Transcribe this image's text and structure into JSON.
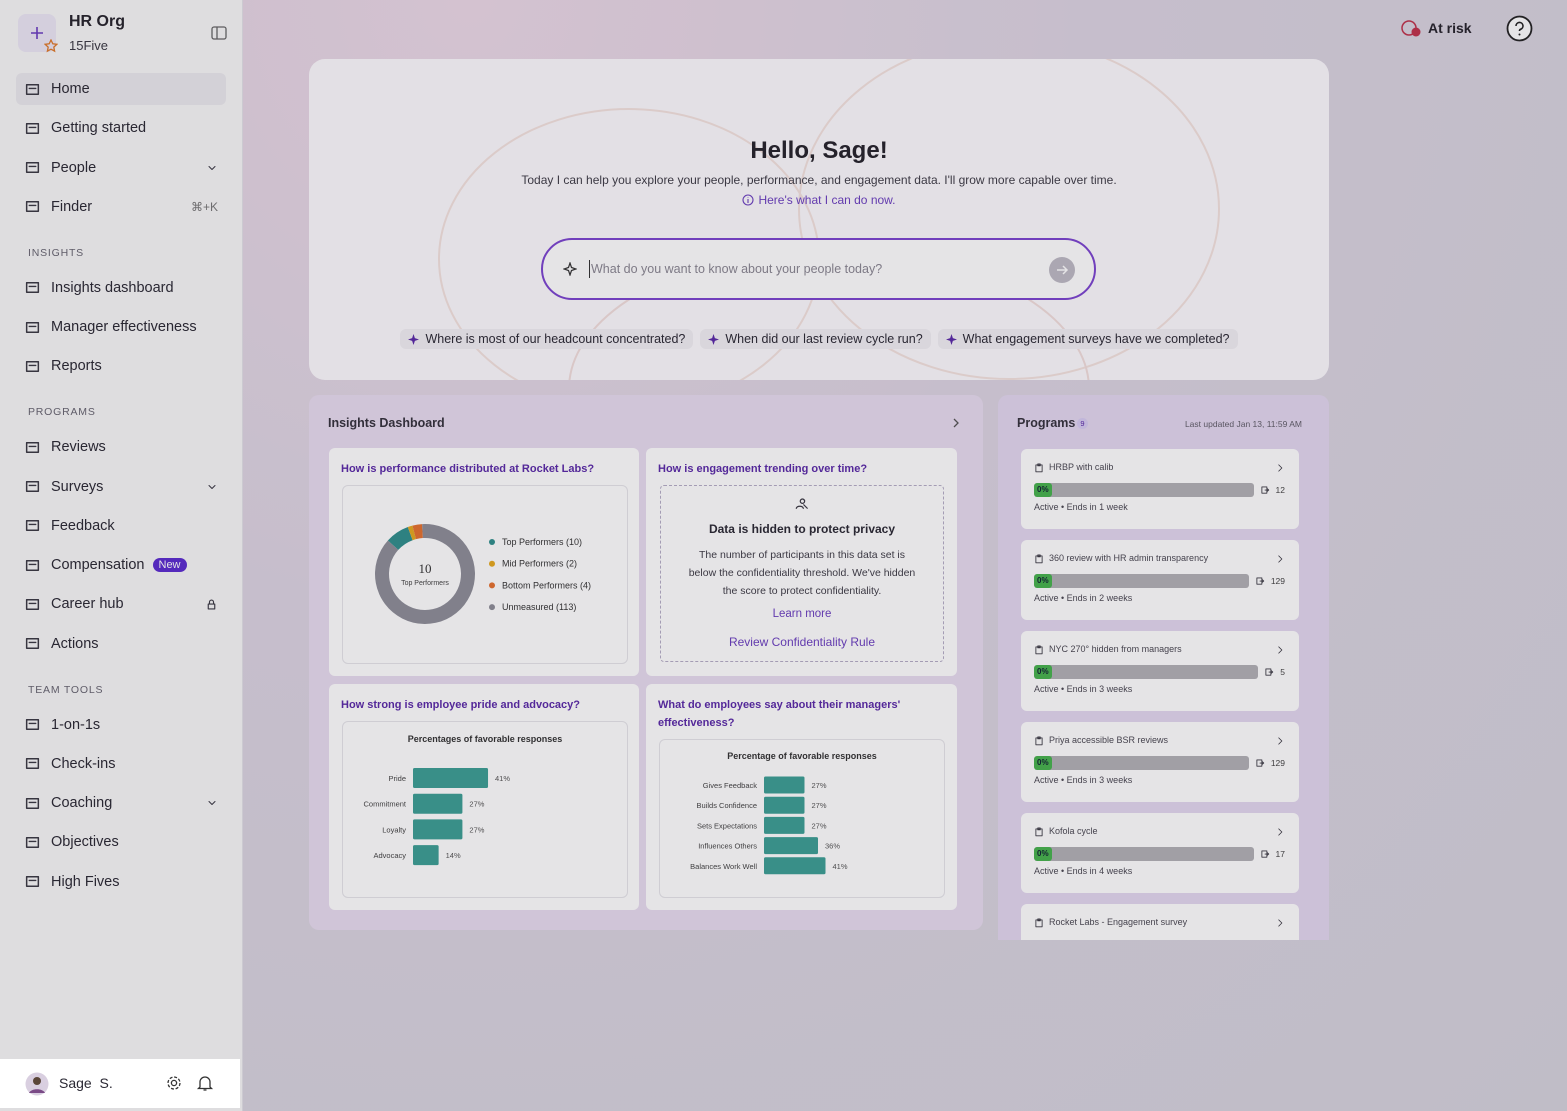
{
  "sidebar": {
    "org": {
      "name": "HR Org",
      "subtitle": "15Five"
    },
    "nav": [
      {
        "label": "Home",
        "active": true
      },
      {
        "label": "Getting started"
      },
      {
        "label": "People",
        "expandable": true
      },
      {
        "label": "Finder",
        "shortcut": "⌘+K"
      }
    ],
    "sections": [
      {
        "title": "INSIGHTS",
        "items": [
          {
            "label": "Insights dashboard"
          },
          {
            "label": "Manager effectiveness"
          },
          {
            "label": "Reports"
          }
        ]
      },
      {
        "title": "PROGRAMS",
        "items": [
          {
            "label": "Reviews"
          },
          {
            "label": "Surveys",
            "expandable": true
          },
          {
            "label": "Feedback"
          },
          {
            "label": "Compensation",
            "badge": "New"
          },
          {
            "label": "Career hub",
            "locked": true
          },
          {
            "label": "Actions"
          }
        ]
      },
      {
        "title": "TEAM TOOLS",
        "items": [
          {
            "label": "1-on-1s"
          },
          {
            "label": "Check-ins"
          },
          {
            "label": "Coaching",
            "expandable": true
          },
          {
            "label": "Objectives"
          },
          {
            "label": "High Fives"
          }
        ]
      }
    ],
    "user": {
      "name": "Sage  S."
    }
  },
  "header": {
    "status": "At risk"
  },
  "hero": {
    "title": "Hello, Sage!",
    "subtitle": "Today I can help you explore your people, performance, and engagement data. I'll grow more capable over time.",
    "link": "Here's what I can do now.",
    "placeholder": "What do you want to know about your people today?",
    "suggestions": [
      "Where is most of our headcount concentrated?",
      "When did our last review cycle run?",
      "What engagement surveys have we completed?"
    ]
  },
  "insights": {
    "title": "Insights Dashboard",
    "performance": {
      "question": "How is performance distributed at Rocket Labs?",
      "center_value": 10,
      "center_label": "Top Performers",
      "segments": [
        {
          "label": "Top Performers (10)",
          "value": 10,
          "color": "#2f8f8c"
        },
        {
          "label": "Mid Performers (2)",
          "value": 2,
          "color": "#e6a91e"
        },
        {
          "label": "Bottom Performers (4)",
          "value": 4,
          "color": "#e5712e"
        },
        {
          "label": "Unmeasured (113)",
          "value": 113,
          "color": "#8e8e98"
        }
      ]
    },
    "engagement": {
      "question": "How is engagement trending over time?",
      "title": "Data is hidden to protect privacy",
      "body": "The number of participants in this data set is below the confidentiality threshold. We've hidden the score to protect confidentiality.",
      "link": "Learn more",
      "action": "Review Confidentiality Rule"
    },
    "pride": {
      "question": "How strong is employee pride and advocacy?",
      "chart_title": "Percentages of favorable responses",
      "categories": [
        "Pride",
        "Commitment",
        "Loyalty",
        "Advocacy"
      ],
      "values": [
        41,
        27,
        27,
        14
      ],
      "value_labels": [
        "41%",
        "27%",
        "27%",
        "14%"
      ],
      "color": "#3c9f94"
    },
    "managers": {
      "question": "What do employees say about their managers' effectiveness?",
      "chart_title": "Percentage of favorable responses",
      "categories": [
        "Gives Feedback",
        "Builds Confidence",
        "Sets Expectations",
        "Influences Others",
        "Balances Work Well"
      ],
      "values": [
        27,
        27,
        27,
        36,
        41
      ],
      "value_labels": [
        "27%",
        "27%",
        "27%",
        "36%",
        "41%"
      ],
      "color": "#3c9f94"
    }
  },
  "programs": {
    "title": "Programs",
    "count": 9,
    "updated": "Last updated Jan 13, 11:59 AM",
    "items": [
      {
        "name": "HRBP with calib",
        "progress": 0,
        "progress_label": "0%",
        "participants": 12,
        "status": "Active • Ends in 1 week"
      },
      {
        "name": "360 review with HR admin transparency",
        "progress": 0,
        "progress_label": "0%",
        "participants": 129,
        "status": "Active • Ends in 2 weeks"
      },
      {
        "name": "NYC 270° hidden from managers",
        "progress": 0,
        "progress_label": "0%",
        "participants": 5,
        "status": "Active • Ends in 3 weeks"
      },
      {
        "name": "Priya accessible BSR reviews",
        "progress": 0,
        "progress_label": "0%",
        "participants": 129,
        "status": "Active • Ends in 3 weeks"
      },
      {
        "name": "Kofola cycle",
        "progress": 0,
        "progress_label": "0%",
        "participants": 17,
        "status": "Active • Ends in 4 weeks"
      },
      {
        "name": "Rocket Labs - Engagement survey"
      }
    ]
  }
}
